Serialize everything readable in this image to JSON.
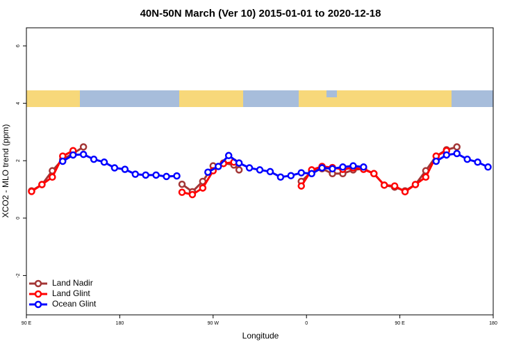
{
  "chart_data": {
    "type": "line",
    "title": "40N-50N March (Ver 10)   2015-01-01 to 2020-12-18",
    "x_label": "Longitude",
    "y_label": "XCO2 - MLO trend (ppm)",
    "xlim": [
      90,
      540
    ],
    "xticks": [
      {
        "value": 90,
        "label": "90 E"
      },
      180,
      {
        "value": 270,
        "label": "90 W"
      },
      {
        "value": 360,
        "label": "0"
      },
      {
        "value": 450,
        "label": "90 E"
      },
      {
        "value": 540,
        "label": "180"
      }
    ],
    "ylim": [
      -3.37,
      6.63
    ],
    "yticks": [
      -2,
      0,
      2,
      4,
      6
    ],
    "legend": "bottom-left",
    "series": [
      {
        "name": "Land Nadir",
        "color": "#a33636",
        "x": [
          95,
          105,
          115,
          125,
          135,
          145,
          190,
          240,
          250,
          260,
          270,
          280,
          290,
          295,
          320,
          355,
          365,
          375,
          385,
          395,
          405,
          415,
          425,
          435,
          445,
          455,
          465,
          475,
          485,
          495,
          505
        ],
        "values": [
          0.95,
          1.17,
          1.65,
          2.05,
          2.25,
          2.48,
          null,
          1.18,
          0.92,
          1.28,
          1.82,
          1.92,
          1.85,
          1.68,
          null,
          1.28,
          1.62,
          1.72,
          1.55,
          1.55,
          1.68,
          1.72,
          1.55,
          1.15,
          1.08,
          0.95,
          1.17,
          1.65,
          2.16,
          2.38,
          2.48
        ]
      },
      {
        "name": "Land Glint",
        "color": "#ff0000",
        "x": [
          95,
          105,
          115,
          125,
          135,
          190,
          240,
          250,
          260,
          270,
          280,
          290,
          320,
          355,
          365,
          375,
          385,
          395,
          405,
          415,
          425,
          435,
          445,
          455,
          465,
          475,
          485,
          495
        ],
        "values": [
          0.93,
          1.17,
          1.43,
          2.16,
          2.35,
          null,
          0.9,
          0.82,
          1.05,
          1.65,
          1.9,
          1.95,
          null,
          1.12,
          1.68,
          1.8,
          1.76,
          1.7,
          1.75,
          1.7,
          1.55,
          1.15,
          1.12,
          0.92,
          1.17,
          1.43,
          2.16,
          2.35
        ]
      },
      {
        "name": "Ocean Glint",
        "color": "#0000ff",
        "x": [
          125,
          135,
          145,
          155,
          165,
          175,
          185,
          195,
          205,
          215,
          225,
          235,
          250,
          265,
          275,
          285,
          295,
          305,
          315,
          325,
          335,
          345,
          355,
          365,
          375,
          385,
          395,
          405,
          415,
          450,
          485,
          495,
          505,
          515,
          525,
          535
        ],
        "values": [
          1.98,
          2.2,
          2.22,
          2.05,
          1.95,
          1.75,
          1.7,
          1.53,
          1.5,
          1.5,
          1.45,
          1.47,
          null,
          1.6,
          1.8,
          2.18,
          1.92,
          1.75,
          1.68,
          1.62,
          1.43,
          1.48,
          1.58,
          1.55,
          1.75,
          1.72,
          1.78,
          1.82,
          1.78,
          null,
          1.98,
          2.2,
          2.25,
          2.05,
          1.95,
          1.78
        ]
      }
    ]
  }
}
